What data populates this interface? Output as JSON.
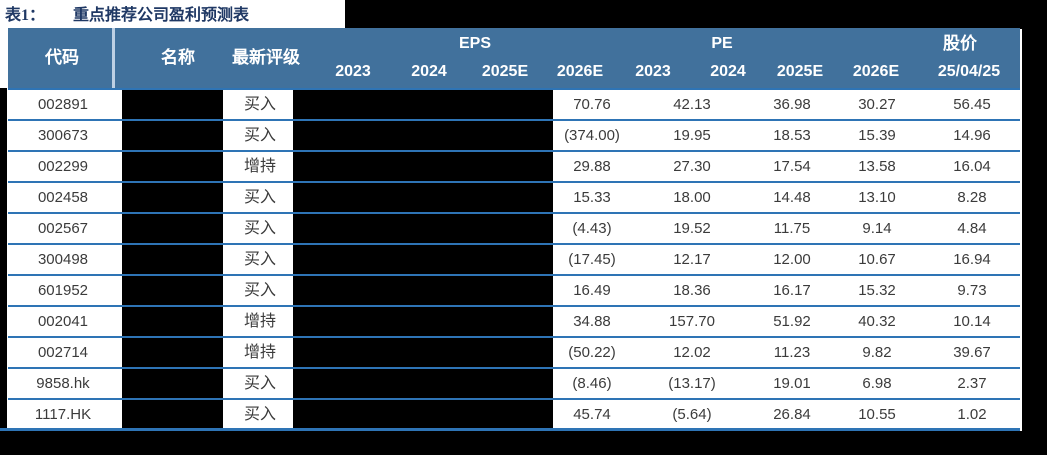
{
  "title": {
    "label": "表1：",
    "text": "重点推荐公司盈利预测表"
  },
  "colors": {
    "header_bg": "#41719C",
    "row_line": "#2E74B5",
    "title_text": "#1F3864",
    "redaction": "#000000",
    "header_text": "#ffffff",
    "body_text": "#3b3b3b"
  },
  "redactions": {
    "name_column_hidden": true,
    "eps_values_hidden": true,
    "top_right_band_hidden": true,
    "footer_band_hidden": true
  },
  "table": {
    "header": {
      "code": "代码",
      "name": "名称",
      "rating": "最新评级",
      "eps_group": "EPS",
      "pe_group": "PE",
      "price_group": "股价",
      "eps_years": [
        "2023",
        "2024",
        "2025E",
        "2026E"
      ],
      "pe_years": [
        "2023",
        "2024",
        "2025E",
        "2026E"
      ],
      "price_date": "25/04/25"
    },
    "rows": [
      {
        "code": "002891",
        "rating": "买入",
        "values": [
          "70.76",
          "42.13",
          "36.98",
          "30.27",
          "56.45"
        ]
      },
      {
        "code": "300673",
        "rating": "买入",
        "values": [
          "(374.00)",
          "19.95",
          "18.53",
          "15.39",
          "14.96"
        ]
      },
      {
        "code": "002299",
        "rating": "增持",
        "values": [
          "29.88",
          "27.30",
          "17.54",
          "13.58",
          "16.04"
        ]
      },
      {
        "code": "002458",
        "rating": "买入",
        "values": [
          "15.33",
          "18.00",
          "14.48",
          "13.10",
          "8.28"
        ]
      },
      {
        "code": "002567",
        "rating": "买入",
        "values": [
          "(4.43)",
          "19.52",
          "11.75",
          "9.14",
          "4.84"
        ]
      },
      {
        "code": "300498",
        "rating": "买入",
        "values": [
          "(17.45)",
          "12.17",
          "12.00",
          "10.67",
          "16.94"
        ]
      },
      {
        "code": "601952",
        "rating": "买入",
        "values": [
          "16.49",
          "18.36",
          "16.17",
          "15.32",
          "9.73"
        ]
      },
      {
        "code": "002041",
        "rating": "增持",
        "values": [
          "34.88",
          "157.70",
          "51.92",
          "40.32",
          "10.14"
        ]
      },
      {
        "code": "002714",
        "rating": "增持",
        "values": [
          "(50.22)",
          "12.02",
          "11.23",
          "9.82",
          "39.67"
        ]
      },
      {
        "code": "9858.hk",
        "rating": "买入",
        "values": [
          "(8.46)",
          "(13.17)",
          "19.01",
          "6.98",
          "2.37"
        ]
      },
      {
        "code": "1117.HK",
        "rating": "买入",
        "values": [
          "45.74",
          "(5.64)",
          "26.84",
          "10.55",
          "1.02"
        ]
      }
    ]
  }
}
